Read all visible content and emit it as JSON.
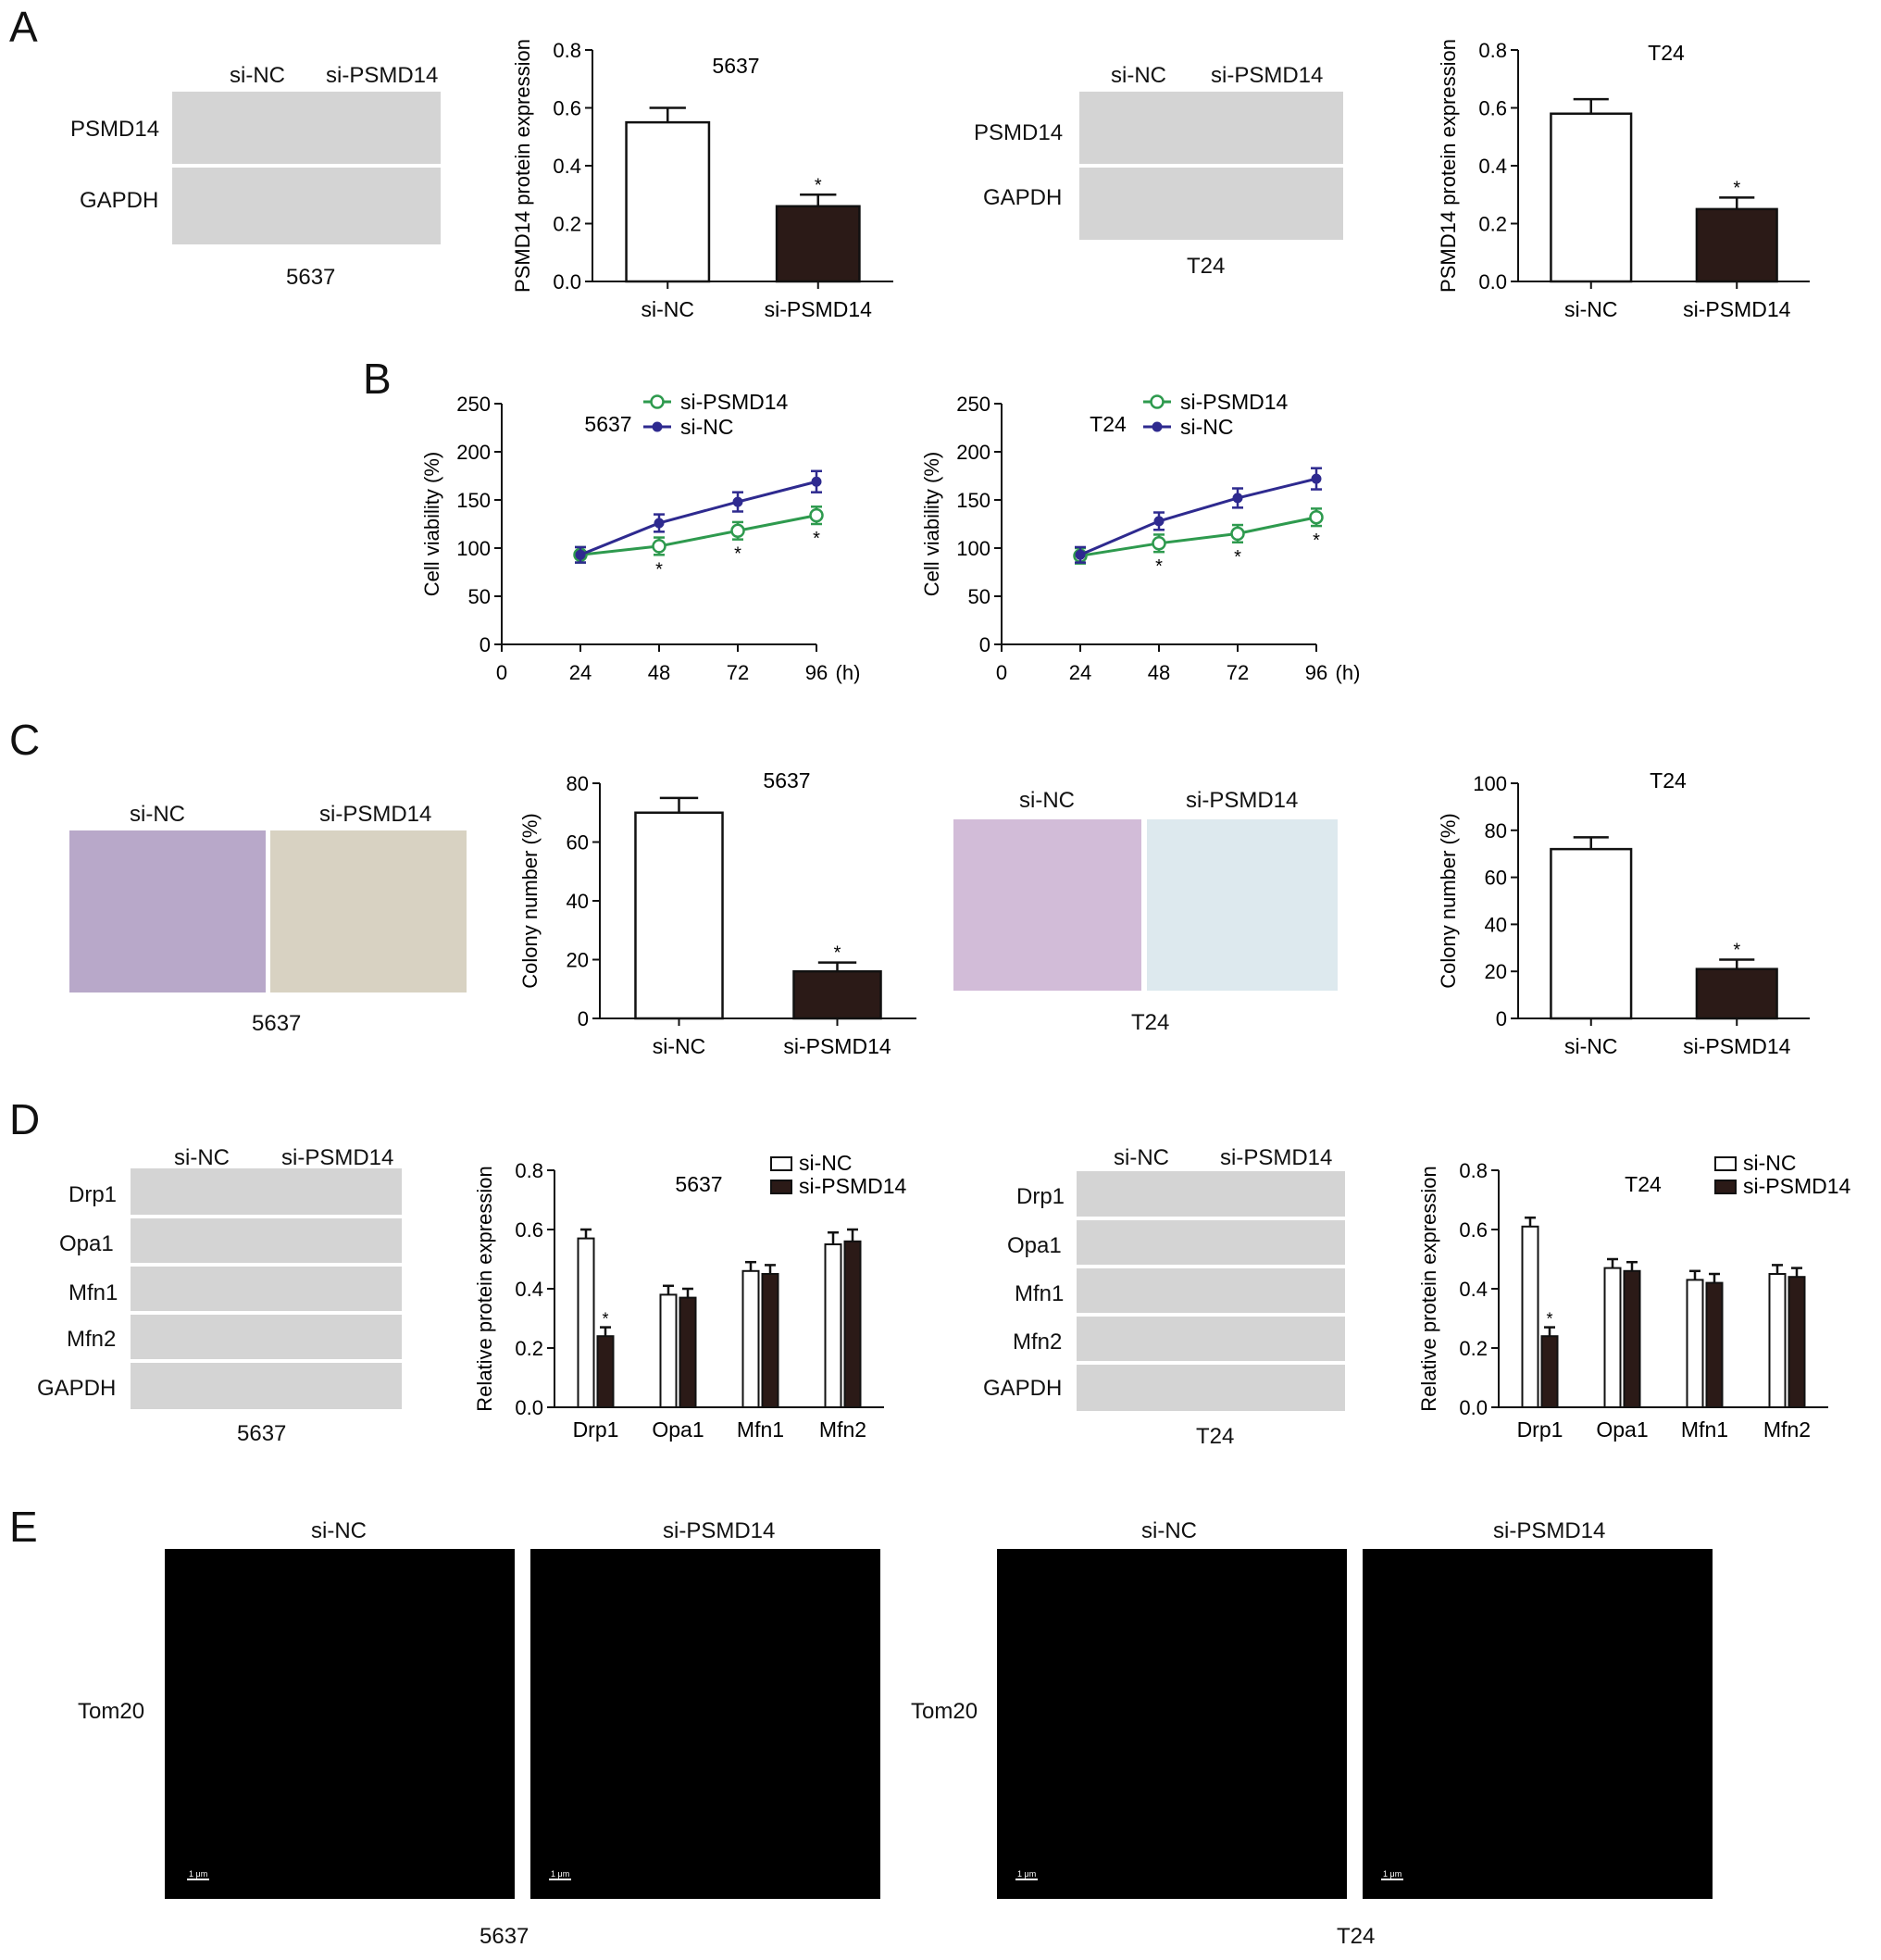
{
  "panels": {
    "a": "A",
    "b": "B",
    "c": "C",
    "d": "D",
    "e": "E"
  },
  "labels": {
    "si_nc": "si-NC",
    "si_psmd14": "si-PSMD14",
    "cell_5637": "5637",
    "cell_t24": "T24",
    "psmd14": "PSMD14",
    "gapdh": "GAPDH",
    "drp1": "Drp1",
    "opa1": "Opa1",
    "mfn1": "Mfn1",
    "mfn2": "Mfn2",
    "tom20": "Tom20",
    "scale_bar": "1 μm"
  },
  "colors": {
    "nc_line": "#2e2a8f",
    "psmd14_line": "#2e9a4e",
    "dark_bar": "#2b1a17",
    "micro_bg": "#000000",
    "micro_fluor": "#39d629"
  },
  "chart_data": [
    {
      "id": "A-5637",
      "type": "bar",
      "title": "5637",
      "ylabel": "PSMD14 protein expression",
      "categories": [
        "si-NC",
        "si-PSMD14"
      ],
      "values": [
        0.55,
        0.26
      ],
      "errors": [
        0.05,
        0.04
      ],
      "significance": [
        "",
        "*"
      ],
      "ylim": [
        0,
        0.8
      ],
      "yticks": [
        "0.0",
        "0.2",
        "0.4",
        "0.6",
        "0.8"
      ]
    },
    {
      "id": "A-T24",
      "type": "bar",
      "title": "T24",
      "ylabel": "PSMD14 protein expression",
      "categories": [
        "si-NC",
        "si-PSMD14"
      ],
      "values": [
        0.58,
        0.25
      ],
      "errors": [
        0.05,
        0.04
      ],
      "significance": [
        "",
        "*"
      ],
      "ylim": [
        0,
        0.8
      ],
      "yticks": [
        "0.0",
        "0.2",
        "0.4",
        "0.6",
        "0.8"
      ]
    },
    {
      "id": "B-5637",
      "type": "line",
      "title": "5637",
      "ylabel": "Cell viability (%)",
      "xunit": "(h)",
      "x": [
        24,
        48,
        72,
        96
      ],
      "xticks": [
        "0",
        "24",
        "48",
        "72",
        "96"
      ],
      "ylim": [
        0,
        250
      ],
      "yticks": [
        "0",
        "50",
        "100",
        "150",
        "200",
        "250"
      ],
      "series": [
        {
          "name": "si-PSMD14",
          "values": [
            93,
            102,
            118,
            134
          ],
          "errors": [
            8,
            9,
            9,
            9
          ],
          "significance": [
            "",
            "*",
            "*",
            "*"
          ]
        },
        {
          "name": "si-NC",
          "values": [
            93,
            126,
            148,
            169
          ],
          "errors": [
            8,
            9,
            10,
            11
          ]
        }
      ]
    },
    {
      "id": "B-T24",
      "type": "line",
      "title": "T24",
      "ylabel": "Cell viability (%)",
      "xunit": "(h)",
      "x": [
        24,
        48,
        72,
        96
      ],
      "xticks": [
        "0",
        "24",
        "48",
        "72",
        "96"
      ],
      "ylim": [
        0,
        250
      ],
      "yticks": [
        "0",
        "50",
        "100",
        "150",
        "200",
        "250"
      ],
      "series": [
        {
          "name": "si-PSMD14",
          "values": [
            92,
            105,
            115,
            132
          ],
          "errors": [
            8,
            9,
            9,
            9
          ],
          "significance": [
            "",
            "*",
            "*",
            "*"
          ]
        },
        {
          "name": "si-NC",
          "values": [
            93,
            128,
            152,
            172
          ],
          "errors": [
            8,
            9,
            10,
            11
          ]
        }
      ]
    },
    {
      "id": "C-5637",
      "type": "bar",
      "title": "5637",
      "ylabel": "Colony number (%)",
      "categories": [
        "si-NC",
        "si-PSMD14"
      ],
      "values": [
        70,
        16
      ],
      "errors": [
        5,
        3
      ],
      "significance": [
        "",
        "*"
      ],
      "ylim": [
        0,
        80
      ],
      "yticks": [
        "0",
        "20",
        "40",
        "60",
        "80"
      ]
    },
    {
      "id": "C-T24",
      "type": "bar",
      "title": "T24",
      "ylabel": "Colony number (%)",
      "categories": [
        "si-NC",
        "si-PSMD14"
      ],
      "values": [
        72,
        21
      ],
      "errors": [
        5,
        4
      ],
      "significance": [
        "",
        "*"
      ],
      "ylim": [
        0,
        100
      ],
      "yticks": [
        "0",
        "20",
        "40",
        "60",
        "80",
        "100"
      ]
    },
    {
      "id": "D-5637",
      "type": "bar",
      "title": "5637",
      "ylabel": "Relative protein expression",
      "categories": [
        "Drp1",
        "Opa1",
        "Mfn1",
        "Mfn2"
      ],
      "ylim": [
        0,
        0.8
      ],
      "yticks": [
        "0.0",
        "0.2",
        "0.4",
        "0.6",
        "0.8"
      ],
      "series": [
        {
          "name": "si-NC",
          "values": [
            0.57,
            0.38,
            0.46,
            0.55
          ],
          "errors": [
            0.03,
            0.03,
            0.03,
            0.04
          ]
        },
        {
          "name": "si-PSMD14",
          "values": [
            0.24,
            0.37,
            0.45,
            0.56
          ],
          "errors": [
            0.03,
            0.03,
            0.03,
            0.04
          ],
          "significance": [
            "*",
            "",
            "",
            ""
          ]
        }
      ]
    },
    {
      "id": "D-T24",
      "type": "bar",
      "title": "T24",
      "ylabel": "Relative protein expression",
      "categories": [
        "Drp1",
        "Opa1",
        "Mfn1",
        "Mfn2"
      ],
      "ylim": [
        0,
        0.8
      ],
      "yticks": [
        "0.0",
        "0.2",
        "0.4",
        "0.6",
        "0.8"
      ],
      "series": [
        {
          "name": "si-NC",
          "values": [
            0.61,
            0.47,
            0.43,
            0.45
          ],
          "errors": [
            0.03,
            0.03,
            0.03,
            0.03
          ]
        },
        {
          "name": "si-PSMD14",
          "values": [
            0.24,
            0.46,
            0.42,
            0.44
          ],
          "errors": [
            0.03,
            0.03,
            0.03,
            0.03
          ],
          "significance": [
            "*",
            "",
            "",
            ""
          ]
        }
      ]
    }
  ]
}
